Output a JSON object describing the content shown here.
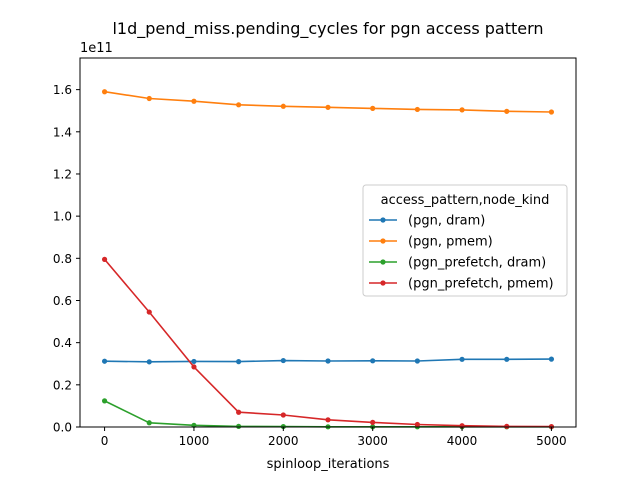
{
  "chart_data": {
    "type": "line",
    "title": "l1d_pend_miss.pending_cycles for pgn access pattern",
    "xlabel": "spinloop_iterations",
    "ylabel": "",
    "y_offset_label": "1e11",
    "y_scale": 100000000000,
    "xlim": [
      -275,
      5275
    ],
    "ylim": [
      0,
      1.75
    ],
    "x_ticks": [
      0,
      1000,
      2000,
      3000,
      4000,
      5000
    ],
    "y_ticks": [
      0.0,
      0.2,
      0.4,
      0.6,
      0.8,
      1.0,
      1.2,
      1.4,
      1.6
    ],
    "grid": false,
    "legend_title": "access_pattern,node_kind",
    "legend_position": "center-right",
    "x": [
      0,
      500,
      1000,
      1500,
      2000,
      2500,
      3000,
      3500,
      4000,
      4500,
      5000
    ],
    "series": [
      {
        "name": "(pgn, dram)",
        "color": "#1f77b4",
        "values": [
          0.312,
          0.309,
          0.311,
          0.31,
          0.315,
          0.313,
          0.314,
          0.313,
          0.321,
          0.321,
          0.322
        ]
      },
      {
        "name": "(pgn, pmem)",
        "color": "#ff7f0e",
        "values": [
          1.59,
          1.558,
          1.545,
          1.528,
          1.521,
          1.516,
          1.511,
          1.506,
          1.504,
          1.497,
          1.494
        ]
      },
      {
        "name": "(pgn_prefetch, dram)",
        "color": "#2ca02c",
        "values": [
          0.124,
          0.02,
          0.008,
          0.003,
          0.002,
          0.001,
          0.001,
          0.001,
          0.001,
          0.001,
          0.001
        ]
      },
      {
        "name": "(pgn_prefetch, pmem)",
        "color": "#d62728",
        "values": [
          0.795,
          0.545,
          0.285,
          0.07,
          0.057,
          0.034,
          0.022,
          0.012,
          0.006,
          0.003,
          0.002
        ]
      }
    ]
  }
}
